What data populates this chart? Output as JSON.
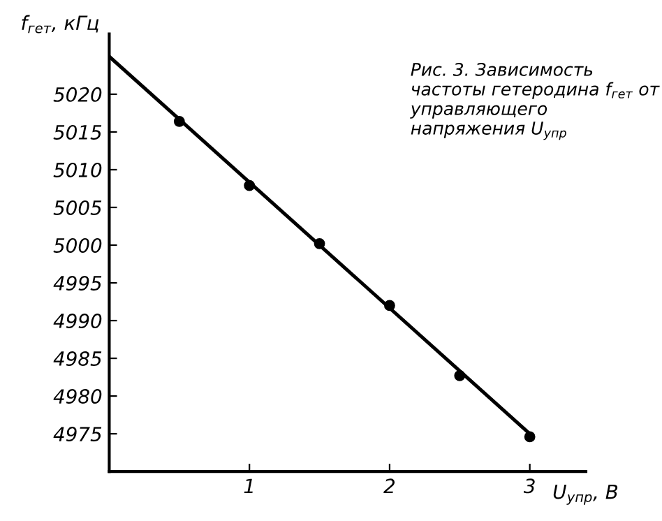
{
  "chart_data": {
    "type": "scatter",
    "xlabel": "U$_{упр}$, В",
    "ylabel": "f$_{гет}$, кГц",
    "annotations": [
      "Рис. 3. Зависимость частоты гетеродина f$_{гет}$ от управляющего напряжения U$_{упр}$"
    ],
    "series": [
      {
        "type": "line",
        "color": "#000000",
        "x": [
          0,
          3
        ],
        "values": [
          5025,
          4975
        ],
        "marker": "none",
        "line_style": "solid"
      },
      {
        "color": "#000000",
        "x": [
          0.5,
          1.0,
          1.5,
          2.0,
          2.5,
          3.0
        ],
        "values": [
          5016.4,
          5007.9,
          5000.2,
          4992.0,
          4982.7,
          4974.6
        ],
        "marker": "circle"
      }
    ],
    "xlim": [
      0,
      3.4
    ],
    "ylim": [
      4970,
      5028
    ],
    "xticks": [
      1,
      2,
      3
    ],
    "yticks": [
      4975,
      4980,
      4985,
      4990,
      4995,
      5000,
      5005,
      5010,
      5015,
      5020
    ],
    "grid": false,
    "legend": false
  }
}
